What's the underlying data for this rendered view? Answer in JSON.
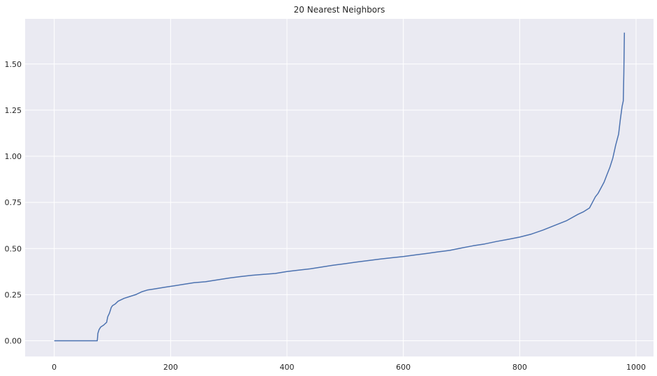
{
  "chart_data": {
    "type": "line",
    "title": "20 Nearest Neighbors",
    "xlabel": "",
    "ylabel": "",
    "xlim": [
      -50,
      1030
    ],
    "ylim": [
      -0.085,
      1.745
    ],
    "xticks": [
      0,
      200,
      400,
      600,
      800,
      1000
    ],
    "xtick_labels": [
      "0",
      "200",
      "400",
      "600",
      "800",
      "1000"
    ],
    "yticks": [
      0,
      0.25,
      0.5,
      0.75,
      1.0,
      1.25,
      1.5
    ],
    "ytick_labels": [
      "0.00",
      "0.25",
      "0.50",
      "0.75",
      "1.00",
      "1.25",
      "1.50"
    ],
    "grid": true,
    "colors": {
      "background": "#EAEAF2",
      "grid": "#FFFFFF",
      "line": "#4C72B0"
    },
    "series": [
      {
        "x": [
          0,
          74,
          75,
          77,
          80,
          85,
          90,
          92,
          95,
          98,
          100,
          105,
          110,
          120,
          130,
          140,
          150,
          160,
          170,
          180,
          190,
          200,
          220,
          240,
          260,
          280,
          300,
          320,
          340,
          360,
          380,
          400,
          420,
          440,
          460,
          480,
          500,
          520,
          540,
          560,
          580,
          600,
          620,
          640,
          660,
          680,
          700,
          720,
          740,
          760,
          780,
          800,
          820,
          840,
          860,
          880,
          900,
          910,
          920,
          925,
          930,
          935,
          940,
          945,
          950,
          955,
          960,
          965,
          970,
          973,
          976,
          978,
          979,
          980
        ],
        "y": [
          0.0,
          0.0,
          0.04,
          0.06,
          0.075,
          0.085,
          0.1,
          0.13,
          0.15,
          0.18,
          0.19,
          0.2,
          0.215,
          0.23,
          0.24,
          0.25,
          0.265,
          0.275,
          0.28,
          0.285,
          0.29,
          0.295,
          0.305,
          0.315,
          0.32,
          0.33,
          0.34,
          0.348,
          0.355,
          0.36,
          0.365,
          0.375,
          0.383,
          0.39,
          0.4,
          0.41,
          0.418,
          0.427,
          0.435,
          0.443,
          0.45,
          0.457,
          0.465,
          0.473,
          0.482,
          0.49,
          0.503,
          0.515,
          0.525,
          0.538,
          0.55,
          0.562,
          0.578,
          0.6,
          0.625,
          0.65,
          0.685,
          0.7,
          0.72,
          0.75,
          0.78,
          0.8,
          0.83,
          0.86,
          0.9,
          0.94,
          0.99,
          1.06,
          1.12,
          1.2,
          1.27,
          1.3,
          1.45,
          1.67
        ]
      }
    ]
  }
}
